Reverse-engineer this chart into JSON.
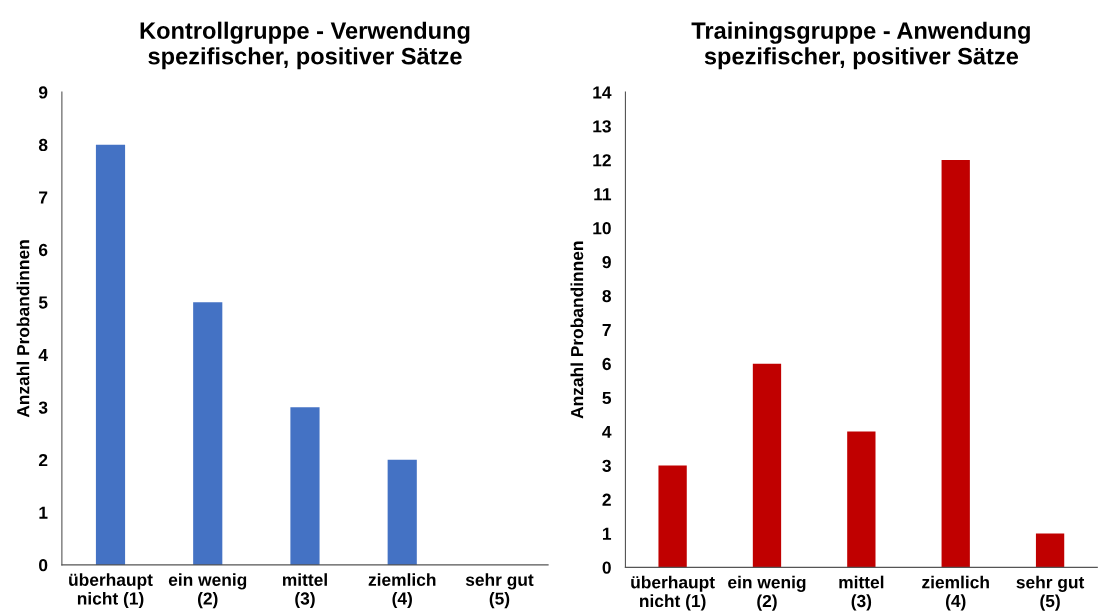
{
  "chart_data": [
    {
      "type": "bar",
      "title": "Kontrollgruppe - Verwendung\nspezifischer, positiver Sätze",
      "ylabel": "Anzahl Probandinnen",
      "categories": [
        "überhaupt\nnicht (1)",
        "ein wenig\n(2)",
        "mittel\n(3)",
        "ziemlich\n(4)",
        "sehr gut\n(5)"
      ],
      "values": [
        8,
        5,
        3,
        2,
        0
      ],
      "color": "#4472c4",
      "ylim": [
        0,
        9
      ],
      "yticks": [
        0,
        1,
        2,
        3,
        4,
        5,
        6,
        7,
        8,
        9
      ],
      "grid": false,
      "legend": false
    },
    {
      "type": "bar",
      "title": "Trainingsgruppe - Anwendung\nspezifischer, positiver Sätze",
      "ylabel": "Anzahl Probandinnen",
      "categories": [
        "überhaupt\nnicht (1)",
        "ein wenig\n(2)",
        "mittel\n(3)",
        "ziemlich\n(4)",
        "sehr gut\n(5)"
      ],
      "values": [
        3,
        6,
        4,
        12,
        1
      ],
      "color": "#c00000",
      "ylim": [
        0,
        14
      ],
      "yticks": [
        0,
        1,
        2,
        3,
        4,
        5,
        6,
        7,
        8,
        9,
        10,
        11,
        12,
        13,
        14
      ],
      "grid": false,
      "legend": false
    }
  ]
}
